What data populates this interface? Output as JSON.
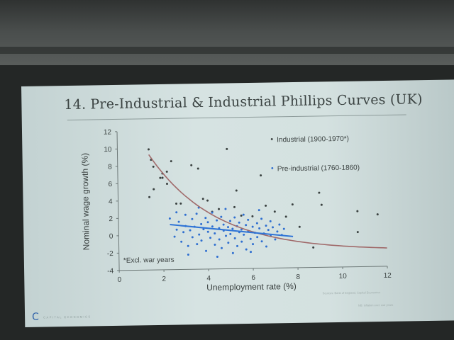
{
  "slide": {
    "title": "14. Pre-Industrial & Industrial Phillips Curves (UK)",
    "brand": "C",
    "brand_text": "capital economics",
    "source": "Sources: Bank of England, Capital Economics",
    "footer": "NB: inflation excl. war years"
  },
  "chart_data": {
    "type": "scatter",
    "xlabel": "Unemployment rate (%)",
    "ylabel": "Nominal wage growth (%)",
    "xlim": [
      0,
      12
    ],
    "ylim": [
      -4,
      12
    ],
    "xticks": [
      "0",
      "2",
      "4",
      "6",
      "8",
      "10",
      "12"
    ],
    "yticks": [
      "-4",
      "-2",
      "0",
      "2",
      "4",
      "6",
      "8",
      "10",
      "12"
    ],
    "annotation": "*Excl. war years",
    "legend": [
      "Industrial (1900-1970*)",
      "Pre-industrial (1760-1860)"
    ],
    "series": [
      {
        "name": "Industrial (1900-1970*)",
        "color": "#3a4140",
        "points": [
          [
            1.4,
            9.9
          ],
          [
            1.5,
            8.7
          ],
          [
            1.6,
            7.9
          ],
          [
            1.6,
            5.3
          ],
          [
            1.9,
            6.6
          ],
          [
            2.0,
            6.6
          ],
          [
            2.0,
            7.1
          ],
          [
            2.2,
            7.3
          ],
          [
            2.4,
            8.5
          ],
          [
            2.2,
            5.9
          ],
          [
            2.6,
            3.6
          ],
          [
            2.8,
            3.6
          ],
          [
            3.3,
            8.0
          ],
          [
            3.6,
            7.6
          ],
          [
            3.8,
            4.1
          ],
          [
            4.0,
            3.9
          ],
          [
            4.2,
            2.6
          ],
          [
            4.5,
            2.9
          ],
          [
            4.9,
            9.8
          ],
          [
            5.2,
            3.1
          ],
          [
            5.3,
            5.0
          ],
          [
            5.5,
            2.1
          ],
          [
            6.0,
            2.0
          ],
          [
            6.4,
            6.7
          ],
          [
            6.6,
            3.2
          ],
          [
            7.0,
            2.5
          ],
          [
            7.5,
            1.9
          ],
          [
            7.8,
            3.3
          ],
          [
            8.1,
            0.7
          ],
          [
            8.7,
            -1.7
          ],
          [
            9.0,
            4.6
          ],
          [
            9.1,
            3.2
          ],
          [
            10.7,
            2.4
          ],
          [
            10.7,
            0.0
          ],
          [
            11.6,
            2.0
          ],
          [
            1.4,
            4.4
          ]
        ]
      },
      {
        "name": "Pre-industrial (1760-1860)",
        "color": "#2f6fd0",
        "points": [
          [
            2.3,
            1.9
          ],
          [
            2.5,
            -0.2
          ],
          [
            2.6,
            0.6
          ],
          [
            2.7,
            1.5
          ],
          [
            2.8,
            -0.8
          ],
          [
            2.9,
            0.3
          ],
          [
            3.0,
            1.0
          ],
          [
            3.0,
            2.3
          ],
          [
            3.1,
            -1.3
          ],
          [
            3.2,
            0.5
          ],
          [
            3.3,
            1.8
          ],
          [
            3.3,
            -0.3
          ],
          [
            3.4,
            0.9
          ],
          [
            3.5,
            -1.1
          ],
          [
            3.5,
            2.4
          ],
          [
            3.6,
            0.0
          ],
          [
            3.7,
            1.2
          ],
          [
            3.7,
            -0.7
          ],
          [
            3.8,
            0.6
          ],
          [
            3.9,
            1.9
          ],
          [
            3.9,
            -1.9
          ],
          [
            4.0,
            0.3
          ],
          [
            4.0,
            1.4
          ],
          [
            4.1,
            -0.4
          ],
          [
            4.2,
            0.9
          ],
          [
            4.2,
            2.5
          ],
          [
            4.3,
            -1.2
          ],
          [
            4.3,
            0.1
          ],
          [
            4.4,
            1.6
          ],
          [
            4.5,
            -0.6
          ],
          [
            4.5,
            0.7
          ],
          [
            4.6,
            2.0
          ],
          [
            4.6,
            -1.6
          ],
          [
            4.7,
            0.4
          ],
          [
            4.7,
            1.1
          ],
          [
            4.8,
            -0.2
          ],
          [
            4.8,
            2.9
          ],
          [
            4.9,
            0.8
          ],
          [
            4.9,
            -1.0
          ],
          [
            5.0,
            1.5
          ],
          [
            5.0,
            0.0
          ],
          [
            5.1,
            -2.2
          ],
          [
            5.1,
            0.6
          ],
          [
            5.2,
            1.9
          ],
          [
            5.2,
            -0.5
          ],
          [
            5.3,
            0.9
          ],
          [
            5.3,
            -1.4
          ],
          [
            5.4,
            0.2
          ],
          [
            5.4,
            1.3
          ],
          [
            5.5,
            -0.9
          ],
          [
            5.5,
            0.5
          ],
          [
            5.6,
            2.2
          ],
          [
            5.6,
            -0.1
          ],
          [
            5.7,
            1.0
          ],
          [
            5.7,
            -1.8
          ],
          [
            5.8,
            0.3
          ],
          [
            5.8,
            1.6
          ],
          [
            5.9,
            -0.6
          ],
          [
            6.0,
            0.8
          ],
          [
            6.0,
            -1.2
          ],
          [
            6.1,
            0.1
          ],
          [
            6.2,
            1.2
          ],
          [
            6.2,
            -0.4
          ],
          [
            6.3,
            0.6
          ],
          [
            6.4,
            -0.9
          ],
          [
            6.4,
            1.7
          ],
          [
            6.5,
            0.0
          ],
          [
            6.6,
            0.9
          ],
          [
            6.6,
            -1.5
          ],
          [
            6.7,
            0.4
          ],
          [
            6.8,
            1.4
          ],
          [
            6.8,
            -0.3
          ],
          [
            6.9,
            0.7
          ],
          [
            7.0,
            -0.7
          ],
          [
            7.1,
            0.2
          ],
          [
            7.2,
            1.0
          ],
          [
            7.3,
            -0.2
          ],
          [
            7.4,
            0.5
          ],
          [
            3.1,
            -2.3
          ],
          [
            4.4,
            -2.6
          ],
          [
            5.9,
            -2.1
          ],
          [
            2.6,
            2.6
          ],
          [
            3.6,
            3.1
          ],
          [
            6.3,
            2.7
          ]
        ]
      }
    ],
    "fit_lines": [
      {
        "series": "Industrial (1900-1970*)",
        "color": "#a06a6a",
        "a": 11.5,
        "b": 2.95,
        "c": -2.2,
        "xrange": [
          1.4,
          12
        ]
      },
      {
        "series": "Pre-industrial (1760-1860)",
        "color": "#2f74d6",
        "x": [
          2.3,
          7.8
        ],
        "y": [
          1.2,
          -0.4
        ]
      }
    ],
    "grid": false
  }
}
